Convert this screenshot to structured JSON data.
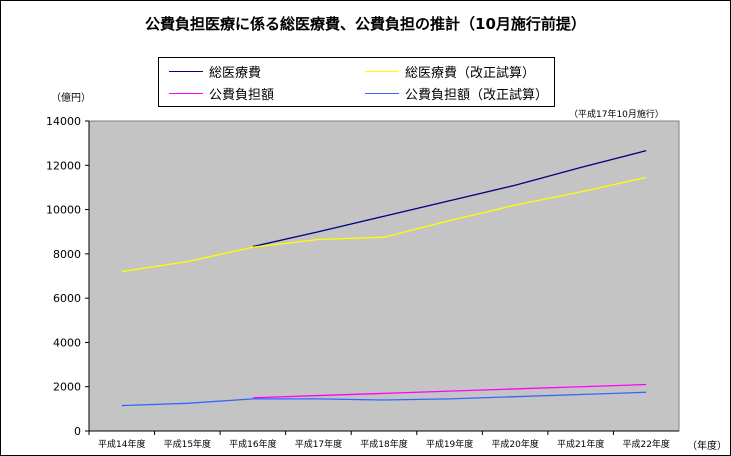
{
  "chart_data": {
    "type": "line",
    "title": "公費負担医療に係る総医療費、公費負担の推計（10月施行前提）",
    "ylabel": "（億円）",
    "xlabel": "（年度）",
    "note": "（平成17年10月施行）",
    "categories": [
      "平成14年度",
      "平成15年度",
      "平成16年度",
      "平成17年度",
      "平成18年度",
      "平成19年度",
      "平成20年度",
      "平成21年度",
      "平成22年度"
    ],
    "ylim": [
      0,
      14000
    ],
    "yticks": [
      0,
      2000,
      4000,
      6000,
      8000,
      10000,
      12000,
      14000
    ],
    "grid": false,
    "plot_background": "#c4c4c4",
    "legend_position": "top",
    "series": [
      {
        "name": "総医療費",
        "color": "#000080",
        "values": [
          null,
          null,
          8330,
          9000,
          9700,
          10400,
          11100,
          11900,
          12660
        ]
      },
      {
        "name": "総医療費（改正試算）",
        "color": "#ffff00",
        "values": [
          7200,
          7650,
          8300,
          8650,
          8750,
          9500,
          10200,
          10800,
          11450
        ]
      },
      {
        "name": "公費負担額",
        "color": "#ff00ff",
        "values": [
          null,
          null,
          1500,
          1600,
          1700,
          1800,
          1900,
          2000,
          2100
        ]
      },
      {
        "name": "公費負担額（改正試算）",
        "color": "#3366ff",
        "values": [
          1150,
          1250,
          1450,
          1450,
          1400,
          1450,
          1550,
          1650,
          1750
        ]
      }
    ]
  }
}
